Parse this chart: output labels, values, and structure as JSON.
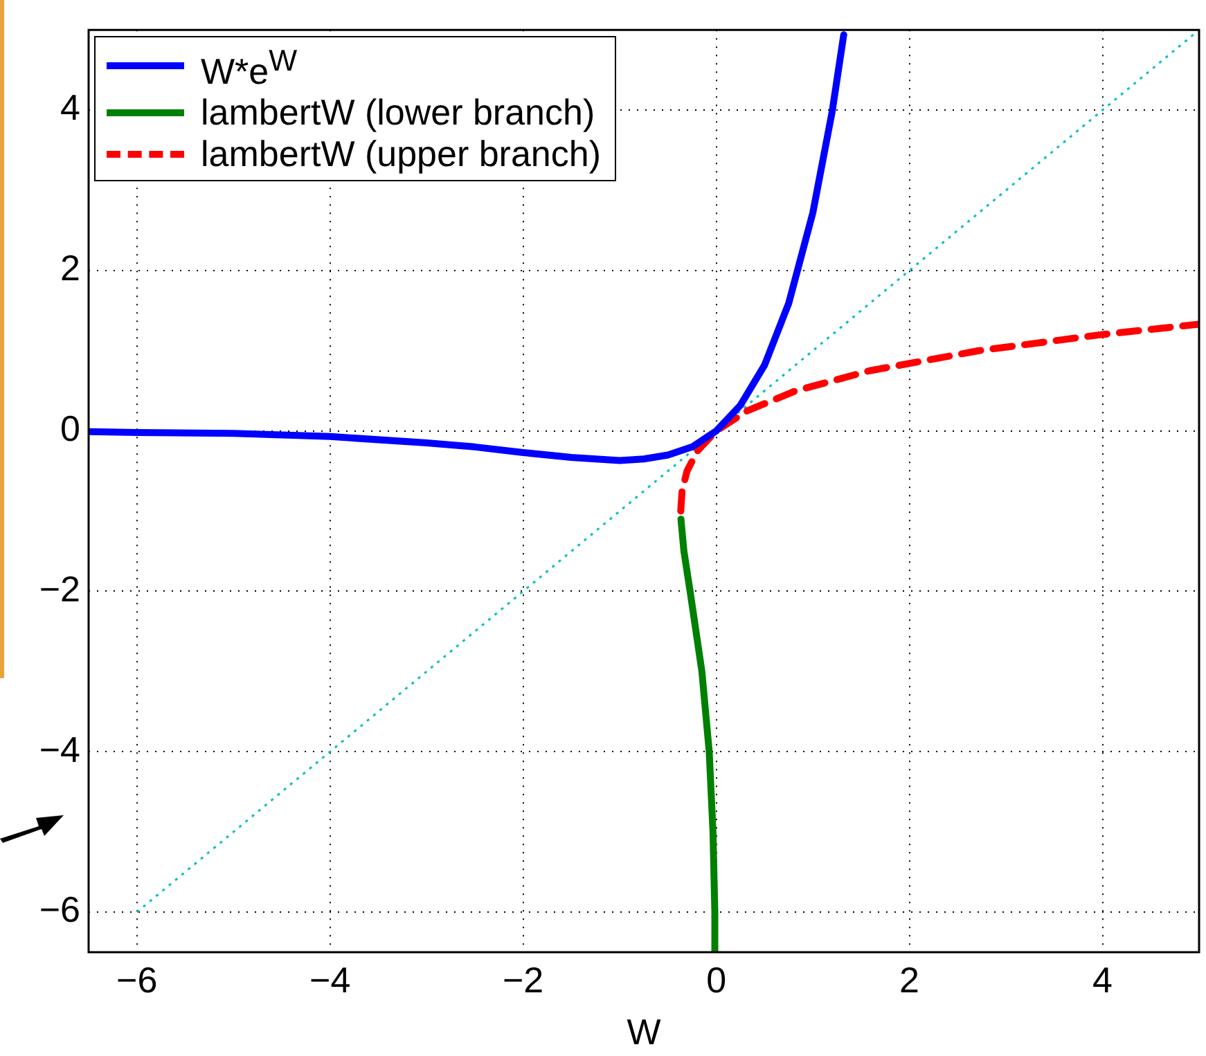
{
  "chart_data": {
    "type": "line",
    "xlabel": "W",
    "xlim": [
      -6.5,
      5
    ],
    "ylim": [
      -6.5,
      5
    ],
    "xticks": [
      {
        "value": -6,
        "label": "−6"
      },
      {
        "value": -4,
        "label": "−4"
      },
      {
        "value": -2,
        "label": "−2"
      },
      0,
      2,
      4
    ],
    "yticks": [
      {
        "value": -6,
        "label": "−6"
      },
      {
        "value": -4,
        "label": "−4"
      },
      {
        "value": -2,
        "label": "−2"
      },
      0,
      2,
      4
    ],
    "grid": true,
    "legend": "top left",
    "marker": "none",
    "series": [
      {
        "name": "W*e$^{W}$",
        "color": "#0000ff",
        "line_style": "solid",
        "x": [
          -6.5,
          -6,
          -5,
          -4,
          -3,
          -2.5,
          -2,
          -1.5,
          -1,
          -0.75,
          -0.5,
          -0.25,
          0,
          0.25,
          0.5,
          0.75,
          1,
          1.2,
          1.32
        ],
        "values": [
          -0.01,
          -0.02,
          -0.03,
          -0.07,
          -0.15,
          -0.2,
          -0.27,
          -0.33,
          -0.37,
          -0.35,
          -0.3,
          -0.2,
          0,
          0.32,
          0.82,
          1.59,
          2.72,
          3.98,
          4.94
        ]
      },
      {
        "name": "lambertW (lower branch)",
        "color": "#008000",
        "line_style": "solid",
        "x": [
          -0.01,
          -0.015,
          -0.034,
          -0.073,
          -0.149,
          -0.271,
          -0.335,
          -0.366
        ],
        "values": [
          -6.5,
          -6,
          -5,
          -4,
          -3,
          -2,
          -1.5,
          -1.1
        ]
      },
      {
        "name": "lambertW (upper branch)",
        "color": "#ff0000",
        "line_style": "dashed",
        "x": [
          -0.368,
          -0.354,
          -0.303,
          -0.195,
          0,
          0.321,
          0.824,
          1.588,
          2.718,
          3.984,
          5
        ],
        "values": [
          -1,
          -0.75,
          -0.5,
          -0.25,
          0,
          0.25,
          0.5,
          0.75,
          1,
          1.2,
          1.33
        ]
      },
      {
        "color": "#00bfbf",
        "line_style": "dotted",
        "x": [
          -6,
          5
        ],
        "values": [
          -6,
          5
        ]
      }
    ]
  }
}
